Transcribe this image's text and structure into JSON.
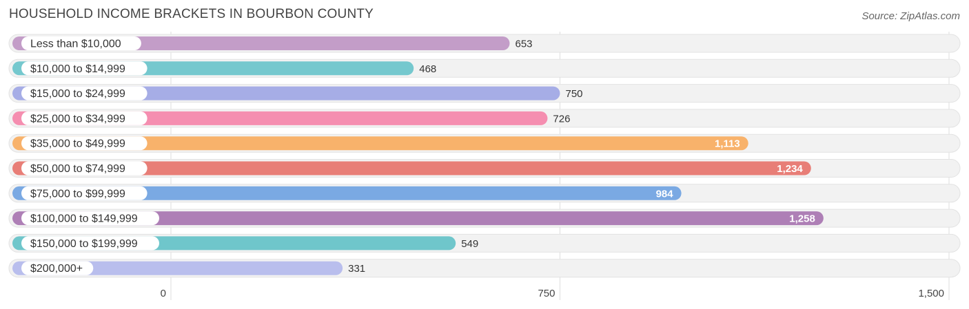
{
  "header": {
    "title": "HOUSEHOLD INCOME BRACKETS IN BOURBON COUNTY",
    "source": "Source: ZipAtlas.com"
  },
  "chart_data": {
    "type": "bar",
    "orientation": "horizontal",
    "title": "HOUSEHOLD INCOME BRACKETS IN BOURBON COUNTY",
    "categories": [
      "Less than $10,000",
      "$10,000 to $14,999",
      "$15,000 to $24,999",
      "$25,000 to $34,999",
      "$35,000 to $49,999",
      "$50,000 to $74,999",
      "$75,000 to $99,999",
      "$100,000 to $149,999",
      "$150,000 to $199,999",
      "$200,000+"
    ],
    "values": [
      653,
      468,
      750,
      726,
      1113,
      1234,
      984,
      1258,
      549,
      331
    ],
    "value_labels": [
      "653",
      "468",
      "750",
      "726",
      "1,113",
      "1,234",
      "984",
      "1,258",
      "549",
      "331"
    ],
    "colors": [
      "#c39dc8",
      "#75c8ce",
      "#a6ade6",
      "#f58eb0",
      "#f8b26b",
      "#e87e77",
      "#7aa9e3",
      "#ae7fb6",
      "#6fc6cb",
      "#b9beed"
    ],
    "xlim": [
      0,
      1500
    ],
    "xticks": [
      0,
      750,
      1500
    ],
    "xtick_labels": [
      "0",
      "750",
      "1,500"
    ],
    "grid": true
  }
}
